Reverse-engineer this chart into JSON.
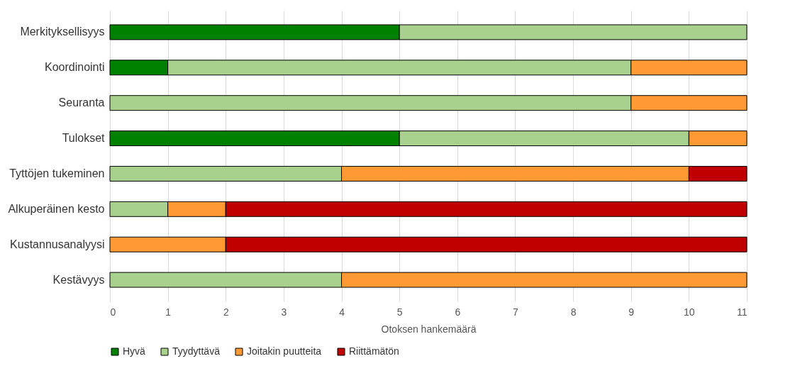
{
  "chart_data": {
    "type": "bar",
    "orientation": "horizontal",
    "stacked": true,
    "xlabel": "Otoksen hankemäärä",
    "categories": [
      "Merkityksellisyys",
      "Koordinointi",
      "Seuranta",
      "Tulokset",
      "Tyttöjen tukeminen",
      "Alkuperäinen kesto",
      "Kustannusanalyysi",
      "Kestävyys"
    ],
    "series": [
      {
        "name": "Hyvä",
        "color": "#008000",
        "values": [
          5,
          1,
          0,
          5,
          0,
          0,
          0,
          0
        ]
      },
      {
        "name": "Tyydyttävä",
        "color": "#a9d18e",
        "values": [
          6,
          8,
          9,
          5,
          4,
          1,
          0,
          4
        ]
      },
      {
        "name": "Joitakin puutteita",
        "color": "#ff9933",
        "values": [
          0,
          2,
          2,
          1,
          6,
          1,
          2,
          7
        ]
      },
      {
        "name": "Riittämätön",
        "color": "#c00000",
        "values": [
          0,
          0,
          0,
          0,
          1,
          9,
          9,
          0
        ]
      }
    ],
    "xlim": [
      0,
      11
    ],
    "xticks": [
      0,
      1,
      2,
      3,
      4,
      5,
      6,
      7,
      8,
      9,
      10,
      11
    ],
    "grid": "x",
    "legend": "bottom"
  }
}
